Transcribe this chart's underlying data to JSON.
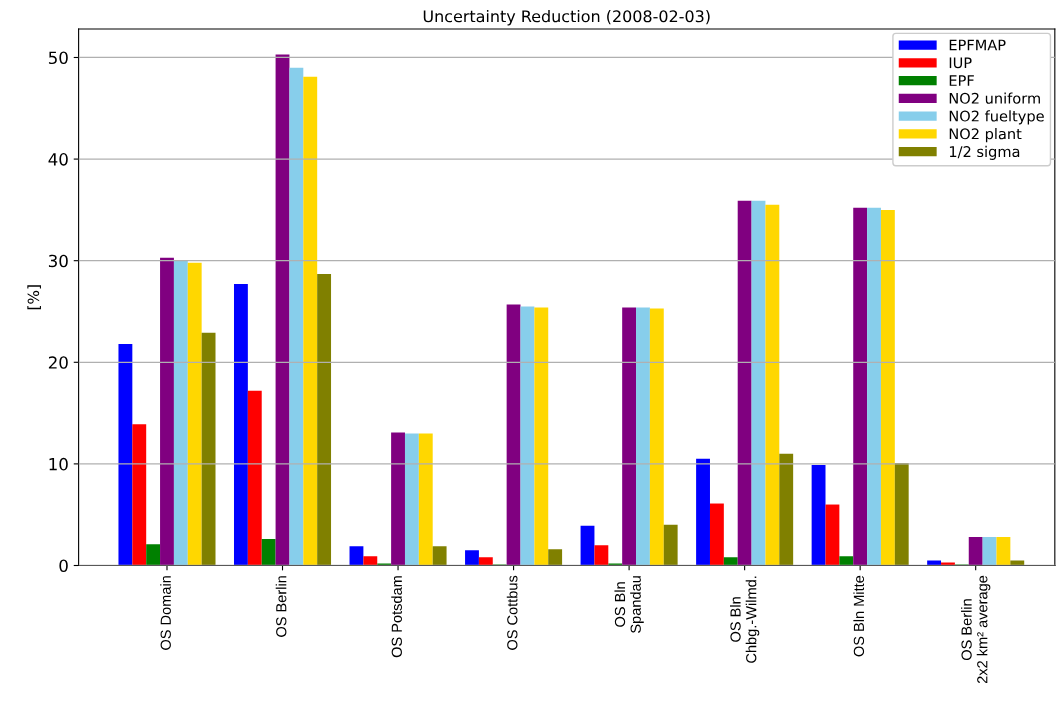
{
  "chart_data": {
    "type": "bar",
    "title": "Uncertainty Reduction (2008-02-03)",
    "ylabel": "[%]",
    "categories": [
      "OS Domain",
      "OS Berlin",
      "OS Potsdam",
      "OS Cottbus",
      "OS Bln\nSpandau",
      "OS Bln\nChbg.-Wilmd.",
      "OS Bln Mitte",
      "OS Berlin\n2x2 km² average"
    ],
    "series": [
      {
        "name": "EPFMAP",
        "color": "#0000ff",
        "values": [
          21.8,
          27.7,
          1.9,
          1.5,
          3.9,
          10.5,
          9.9,
          0.5
        ]
      },
      {
        "name": "IUP",
        "color": "#ff0000",
        "values": [
          13.9,
          17.2,
          0.9,
          0.8,
          2.0,
          6.1,
          6.0,
          0.3
        ]
      },
      {
        "name": "EPF",
        "color": "#008000",
        "values": [
          2.1,
          2.6,
          0.2,
          0.1,
          0.2,
          0.8,
          0.9,
          0.1
        ]
      },
      {
        "name": "NO2 uniform",
        "color": "#800080",
        "values": [
          30.3,
          50.3,
          13.1,
          25.7,
          25.4,
          35.9,
          35.2,
          2.8
        ]
      },
      {
        "name": "NO2 fueltype",
        "color": "#87ceeb",
        "values": [
          30.0,
          49.0,
          13.0,
          25.5,
          25.4,
          35.9,
          35.2,
          2.8
        ]
      },
      {
        "name": "NO2 plant",
        "color": "#ffd700",
        "values": [
          29.8,
          48.1,
          13.0,
          25.4,
          25.3,
          35.5,
          35.0,
          2.8
        ]
      },
      {
        "name": "1/2 sigma",
        "color": "#808000",
        "values": [
          22.9,
          28.7,
          1.9,
          1.6,
          4.0,
          11.0,
          10.1,
          0.5
        ]
      }
    ],
    "ylim": [
      0,
      52.8
    ],
    "yticks": [
      0,
      10,
      20,
      30,
      40,
      50
    ],
    "grid": "y",
    "legend": "top right"
  }
}
